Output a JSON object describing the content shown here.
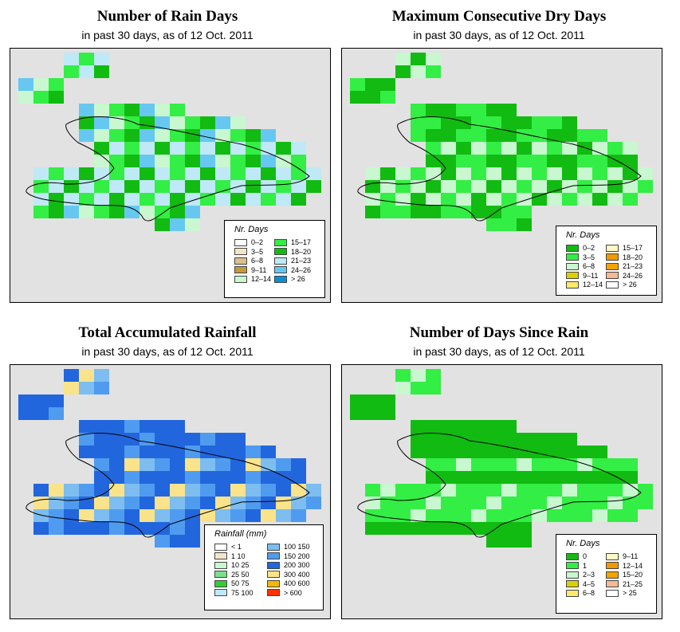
{
  "panels": [
    {
      "id": "rain-days",
      "title": "Number of Rain Days",
      "subtitle": "in past 30 days, as of  12 Oct. 2011",
      "legend": {
        "title": "Nr. Days",
        "items": [
          {
            "label": "0–2",
            "color": "#ffffff"
          },
          {
            "label": "3–5",
            "color": "#f3e6c8"
          },
          {
            "label": "6–8",
            "color": "#dcc08c"
          },
          {
            "label": "9–11",
            "color": "#c49a3c"
          },
          {
            "label": "12–14",
            "color": "#c8f7d0"
          },
          {
            "label": "15–17",
            "color": "#33ee44"
          },
          {
            "label": "18–20",
            "color": "#11bb11"
          },
          {
            "label": "21–23",
            "color": "#bfe9f6"
          },
          {
            "label": "24–26",
            "color": "#66c8f0"
          },
          {
            "label": "> 26",
            "color": "#0a8fd6"
          }
        ]
      }
    },
    {
      "id": "dry-days",
      "title": "Maximum Consecutive Dry Days",
      "subtitle": "in past 30 days, as of  12 Oct. 2011",
      "legend": {
        "title": "Nr. Days",
        "items": [
          {
            "label": "0–2",
            "color": "#11bb11"
          },
          {
            "label": "3–5",
            "color": "#33ee44"
          },
          {
            "label": "6–8",
            "color": "#c8f7d0"
          },
          {
            "label": "9–11",
            "color": "#ddd000"
          },
          {
            "label": "12–14",
            "color": "#ffe96a"
          },
          {
            "label": "15–17",
            "color": "#fff8c4"
          },
          {
            "label": "18–20",
            "color": "#ee9a00"
          },
          {
            "label": "21–23",
            "color": "#f4a300"
          },
          {
            "label": "24–26",
            "color": "#f7b893"
          },
          {
            "label": "> 26",
            "color": "#ffffff"
          }
        ]
      }
    },
    {
      "id": "rainfall",
      "title": "Total Accumulated Rainfall",
      "subtitle": "in past 30 days, as of  12 Oct. 2011",
      "legend": {
        "title": "Rainfall (mm)",
        "items": [
          {
            "label": "< 1",
            "color": "#ffffff"
          },
          {
            "label": "1    10",
            "color": "#f3e6c8"
          },
          {
            "label": "10    25",
            "color": "#c8f7d0"
          },
          {
            "label": "25    50",
            "color": "#7ae08a"
          },
          {
            "label": "50    75",
            "color": "#33cc33"
          },
          {
            "label": "75   100",
            "color": "#bfe9f6"
          },
          {
            "label": "100   150",
            "color": "#7dbdf0"
          },
          {
            "label": "150   200",
            "color": "#4f9bef"
          },
          {
            "label": "200   300",
            "color": "#2266dd"
          },
          {
            "label": "300   400",
            "color": "#fae38a"
          },
          {
            "label": "400   600",
            "color": "#f5b800"
          },
          {
            "label": "> 600",
            "color": "#ff3300"
          }
        ]
      }
    },
    {
      "id": "since-rain",
      "title": "Number of Days Since Rain",
      "subtitle": "in past 30 days, as of  12 Oct. 2011",
      "legend": {
        "title": "Nr. Days",
        "items": [
          {
            "label": "0",
            "color": "#11bb11"
          },
          {
            "label": "1",
            "color": "#33ee44"
          },
          {
            "label": "2–3",
            "color": "#c8f7d0"
          },
          {
            "label": "4–5",
            "color": "#ddd000"
          },
          {
            "label": "6–8",
            "color": "#ffe96a"
          },
          {
            "label": "9–11",
            "color": "#fff8c4"
          },
          {
            "label": "12–14",
            "color": "#ee9a00"
          },
          {
            "label": "15–20",
            "color": "#f4a300"
          },
          {
            "label": "21–25",
            "color": "#f7b893"
          },
          {
            "label": "> 25",
            "color": "#ffffff"
          }
        ]
      }
    }
  ]
}
